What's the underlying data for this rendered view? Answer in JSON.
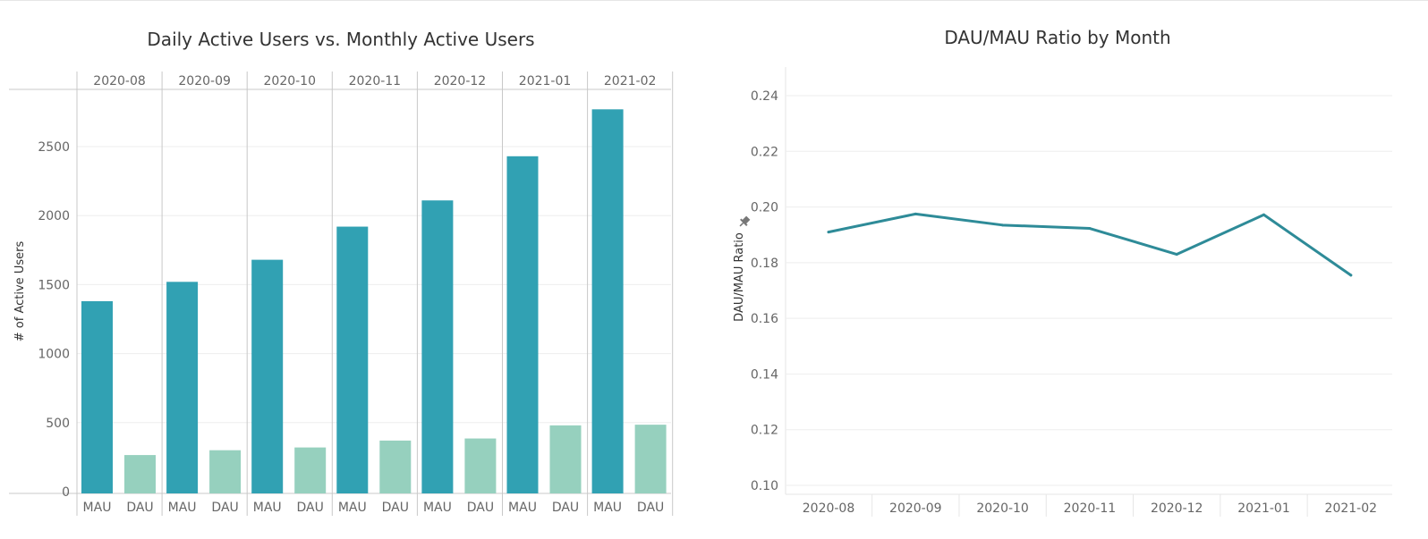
{
  "colors": {
    "mau": "#31A1B3",
    "dau": "#96D0BE",
    "line": "#2E8B98"
  },
  "chart_data": [
    {
      "type": "bar",
      "title": "Daily Active Users vs. Monthly Active Users",
      "ylabel": "# of Active Users",
      "xlabel": "",
      "categories": [
        "2020-08",
        "2020-09",
        "2020-10",
        "2020-11",
        "2020-12",
        "2021-01",
        "2021-02"
      ],
      "sub_categories": [
        "MAU",
        "DAU"
      ],
      "series": [
        {
          "name": "MAU",
          "values": [
            1380,
            1520,
            1680,
            1920,
            2110,
            2430,
            2770
          ]
        },
        {
          "name": "DAU",
          "values": [
            265,
            300,
            320,
            370,
            385,
            480,
            485
          ]
        }
      ],
      "ylim": [
        0,
        2850
      ],
      "yticks": [
        0,
        500,
        1000,
        1500,
        2000,
        2500
      ],
      "grid": true
    },
    {
      "type": "line",
      "title": "DAU/MAU Ratio by Month",
      "ylabel": "DAU/MAU Ratio",
      "xlabel": "",
      "x": [
        "2020-08",
        "2020-09",
        "2020-10",
        "2020-11",
        "2020-12",
        "2021-01",
        "2021-02"
      ],
      "values": [
        0.191,
        0.1975,
        0.1935,
        0.1923,
        0.183,
        0.1972,
        0.1755
      ],
      "ylim": [
        0.095,
        0.25
      ],
      "yticks": [
        "0.10",
        "0.12",
        "0.14",
        "0.16",
        "0.18",
        "0.20",
        "0.22",
        "0.24"
      ],
      "grid": true
    }
  ]
}
